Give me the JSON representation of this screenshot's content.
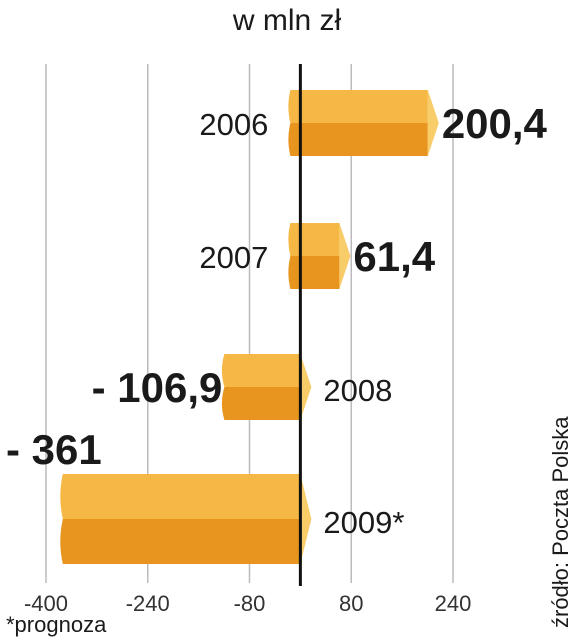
{
  "chart_data": {
    "type": "bar",
    "orientation": "horizontal",
    "title": "w mln zł",
    "categories": [
      "2006",
      "2007",
      "2008",
      "2009*"
    ],
    "values": [
      200.4,
      61.4,
      -106.9,
      -361
    ],
    "value_labels": [
      "200,4",
      "61,4",
      "- 106,9",
      "- 361"
    ],
    "xlim": [
      -400,
      240
    ],
    "x_ticks": [
      -400,
      -240,
      -80,
      80,
      240
    ],
    "x_tick_labels": [
      "-400",
      "-240",
      "-80",
      "80",
      "240"
    ],
    "grid": true,
    "footnote": "*prognoza",
    "source": "źródło: Poczta Polska",
    "colors": {
      "bar_top": "#f5b845",
      "bar_front": "#e8951f",
      "bar_side": "#f9cc6a",
      "zero_line": "#111111",
      "grid": "#bbbbbb"
    }
  }
}
